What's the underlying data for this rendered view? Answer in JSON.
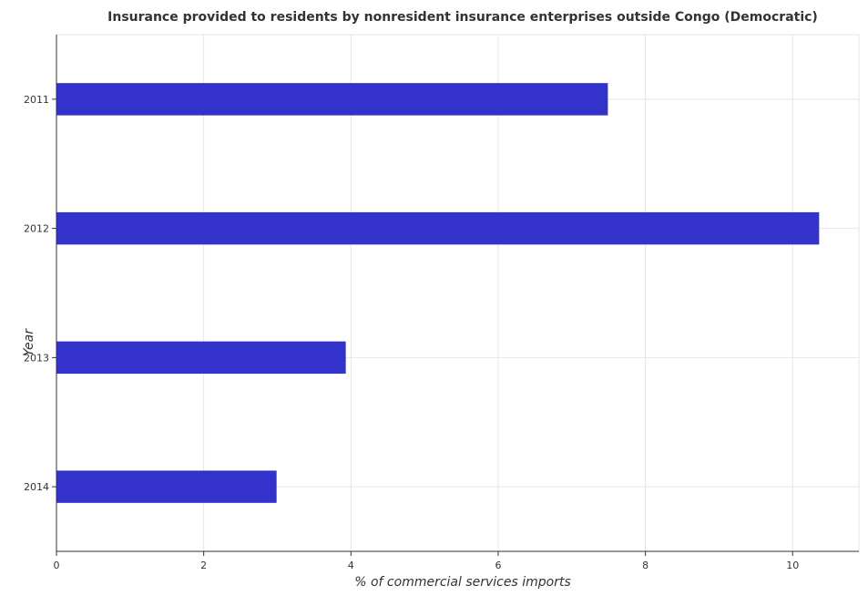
{
  "chart_data": {
    "type": "bar",
    "orientation": "horizontal",
    "title": "Insurance provided to residents by nonresident insurance enterprises outside Congo (Democratic)",
    "xlabel": "% of commercial services imports",
    "ylabel": "Year",
    "categories": [
      "2011",
      "2012",
      "2013",
      "2014"
    ],
    "values": [
      7.49,
      10.36,
      3.93,
      2.99
    ],
    "xlim": [
      0,
      10.9
    ],
    "xticks": [
      0,
      2,
      4,
      6,
      8,
      10
    ],
    "xtick_labels": [
      "0",
      "2",
      "4",
      "6",
      "8",
      "10"
    ],
    "grid": true,
    "bar_color": "#3333cc"
  }
}
